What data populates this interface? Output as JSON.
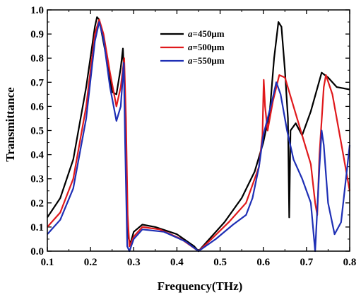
{
  "chart_data": {
    "type": "line",
    "xlabel": "Frequency(THz)",
    "ylabel": "Transmittance",
    "xlim": [
      0.1,
      0.8
    ],
    "ylim": [
      0.0,
      1.0
    ],
    "xticks": [
      "0.1",
      "0.2",
      "0.3",
      "0.4",
      "0.5",
      "0.6",
      "0.7",
      "0.8"
    ],
    "yticks": [
      "0.0",
      "0.1",
      "0.2",
      "0.3",
      "0.4",
      "0.5",
      "0.6",
      "0.7",
      "0.8",
      "0.9",
      "1.0"
    ],
    "grid": false,
    "legend_position": "top-center",
    "series": [
      {
        "name_prefix": "a",
        "name_value": "=450μm",
        "color": "#000000",
        "points": [
          [
            0.1,
            0.14
          ],
          [
            0.13,
            0.22
          ],
          [
            0.16,
            0.38
          ],
          [
            0.19,
            0.68
          ],
          [
            0.21,
            0.93
          ],
          [
            0.215,
            0.97
          ],
          [
            0.22,
            0.96
          ],
          [
            0.235,
            0.82
          ],
          [
            0.25,
            0.66
          ],
          [
            0.26,
            0.65
          ],
          [
            0.27,
            0.76
          ],
          [
            0.275,
            0.84
          ],
          [
            0.28,
            0.62
          ],
          [
            0.283,
            0.3
          ],
          [
            0.287,
            0.06
          ],
          [
            0.292,
            0.03
          ],
          [
            0.3,
            0.08
          ],
          [
            0.32,
            0.11
          ],
          [
            0.35,
            0.1
          ],
          [
            0.4,
            0.07
          ],
          [
            0.44,
            0.02
          ],
          [
            0.45,
            0.0
          ],
          [
            0.47,
            0.04
          ],
          [
            0.51,
            0.12
          ],
          [
            0.55,
            0.22
          ],
          [
            0.58,
            0.33
          ],
          [
            0.6,
            0.45
          ],
          [
            0.615,
            0.58
          ],
          [
            0.625,
            0.8
          ],
          [
            0.635,
            0.95
          ],
          [
            0.642,
            0.93
          ],
          [
            0.65,
            0.75
          ],
          [
            0.657,
            0.55
          ],
          [
            0.66,
            0.14
          ],
          [
            0.663,
            0.5
          ],
          [
            0.675,
            0.53
          ],
          [
            0.69,
            0.48
          ],
          [
            0.71,
            0.58
          ],
          [
            0.735,
            0.74
          ],
          [
            0.75,
            0.72
          ],
          [
            0.77,
            0.68
          ],
          [
            0.8,
            0.67
          ]
        ]
      },
      {
        "name_prefix": "a",
        "name_value": "=500μm",
        "color": "#e0191c",
        "points": [
          [
            0.1,
            0.1
          ],
          [
            0.13,
            0.16
          ],
          [
            0.16,
            0.3
          ],
          [
            0.19,
            0.6
          ],
          [
            0.21,
            0.9
          ],
          [
            0.22,
            0.96
          ],
          [
            0.23,
            0.9
          ],
          [
            0.245,
            0.74
          ],
          [
            0.26,
            0.6
          ],
          [
            0.27,
            0.68
          ],
          [
            0.278,
            0.8
          ],
          [
            0.282,
            0.55
          ],
          [
            0.286,
            0.15
          ],
          [
            0.29,
            0.02
          ],
          [
            0.3,
            0.06
          ],
          [
            0.32,
            0.1
          ],
          [
            0.36,
            0.09
          ],
          [
            0.41,
            0.05
          ],
          [
            0.45,
            0.0
          ],
          [
            0.48,
            0.05
          ],
          [
            0.52,
            0.12
          ],
          [
            0.56,
            0.2
          ],
          [
            0.59,
            0.35
          ],
          [
            0.598,
            0.48
          ],
          [
            0.601,
            0.71
          ],
          [
            0.604,
            0.6
          ],
          [
            0.61,
            0.5
          ],
          [
            0.622,
            0.62
          ],
          [
            0.637,
            0.73
          ],
          [
            0.65,
            0.72
          ],
          [
            0.67,
            0.6
          ],
          [
            0.69,
            0.48
          ],
          [
            0.71,
            0.36
          ],
          [
            0.72,
            0.2
          ],
          [
            0.725,
            0.15
          ],
          [
            0.73,
            0.4
          ],
          [
            0.74,
            0.68
          ],
          [
            0.745,
            0.73
          ],
          [
            0.76,
            0.65
          ],
          [
            0.78,
            0.45
          ],
          [
            0.8,
            0.25
          ]
        ]
      },
      {
        "name_prefix": "a",
        "name_value": "=550μm",
        "color": "#1e2fb5",
        "points": [
          [
            0.1,
            0.07
          ],
          [
            0.13,
            0.13
          ],
          [
            0.16,
            0.26
          ],
          [
            0.19,
            0.55
          ],
          [
            0.21,
            0.87
          ],
          [
            0.22,
            0.95
          ],
          [
            0.23,
            0.88
          ],
          [
            0.245,
            0.68
          ],
          [
            0.26,
            0.54
          ],
          [
            0.27,
            0.6
          ],
          [
            0.277,
            0.78
          ],
          [
            0.28,
            0.45
          ],
          [
            0.285,
            0.02
          ],
          [
            0.29,
            0.0
          ],
          [
            0.3,
            0.05
          ],
          [
            0.32,
            0.09
          ],
          [
            0.37,
            0.08
          ],
          [
            0.42,
            0.04
          ],
          [
            0.45,
            0.0
          ],
          [
            0.49,
            0.05
          ],
          [
            0.53,
            0.11
          ],
          [
            0.56,
            0.15
          ],
          [
            0.575,
            0.22
          ],
          [
            0.59,
            0.35
          ],
          [
            0.6,
            0.48
          ],
          [
            0.62,
            0.62
          ],
          [
            0.63,
            0.7
          ],
          [
            0.64,
            0.65
          ],
          [
            0.655,
            0.5
          ],
          [
            0.67,
            0.38
          ],
          [
            0.69,
            0.3
          ],
          [
            0.71,
            0.2
          ],
          [
            0.72,
            0.0
          ],
          [
            0.73,
            0.35
          ],
          [
            0.735,
            0.5
          ],
          [
            0.74,
            0.44
          ],
          [
            0.75,
            0.2
          ],
          [
            0.765,
            0.07
          ],
          [
            0.78,
            0.12
          ],
          [
            0.8,
            0.44
          ]
        ]
      }
    ]
  }
}
